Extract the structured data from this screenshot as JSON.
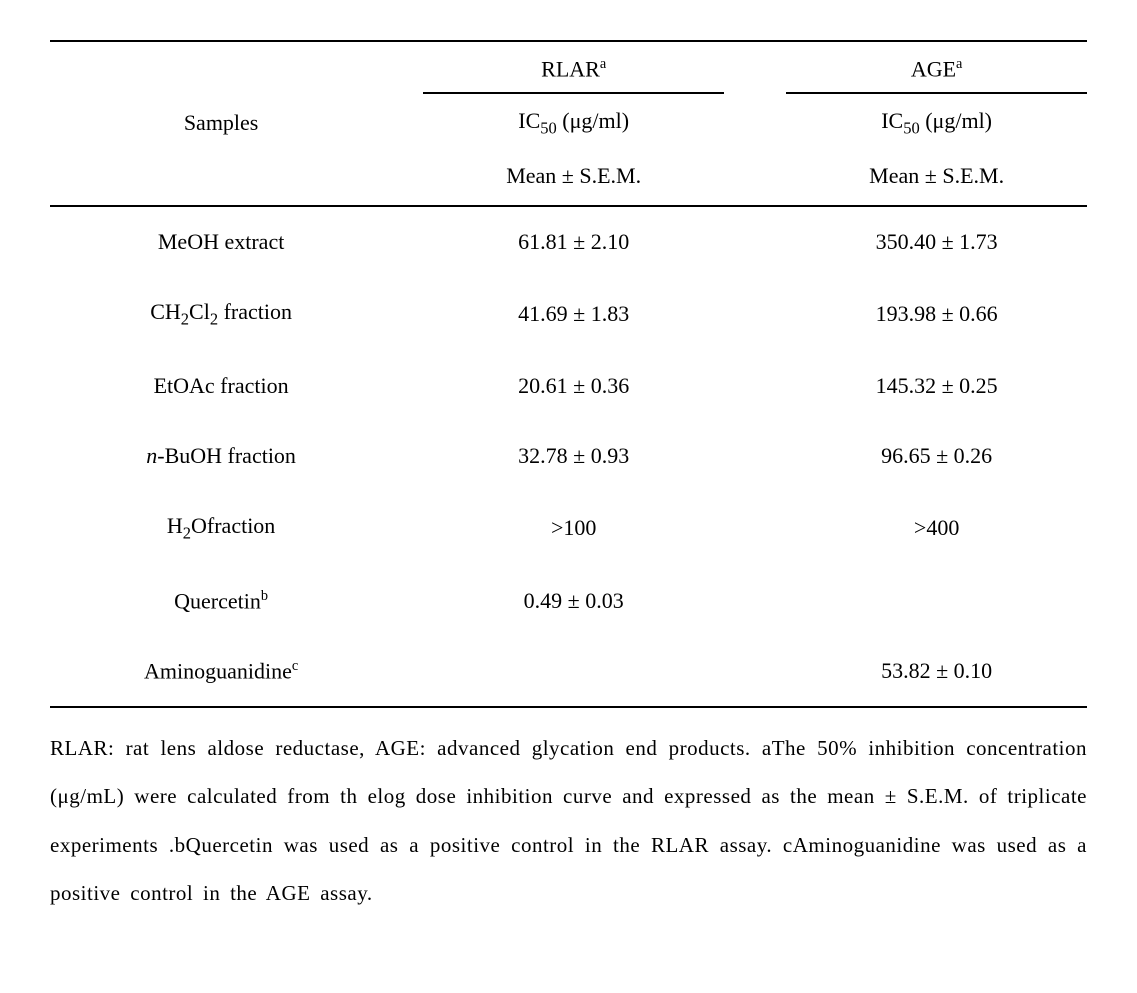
{
  "headers": {
    "samples": "Samples",
    "rlar_label": "RLAR",
    "rlar_sup": "a",
    "age_label": "AGE",
    "age_sup": "a",
    "ic50_prefix": "IC",
    "ic50_sub": "50",
    "ic50_unit": " (μg/ml)",
    "mean_sem": "Mean ± S.E.M."
  },
  "rows": [
    {
      "sample_html": "MeOH extract",
      "rlar": "61.81 ± 2.10",
      "age": "350.40 ± 1.73"
    },
    {
      "sample_html": "CH<sub>2</sub>Cl<sub>2</sub> fraction",
      "rlar": "41.69 ± 1.83",
      "age": "193.98 ± 0.66"
    },
    {
      "sample_html": "EtOAc fraction",
      "rlar": "20.61 ± 0.36",
      "age": "145.32 ± 0.25"
    },
    {
      "sample_html": "<span class=\"italic\">n</span>-BuOH fraction",
      "rlar": "32.78 ± 0.93",
      "age": "96.65 ± 0.26"
    },
    {
      "sample_html": "H<sub>2</sub>Ofraction",
      "rlar": ">100",
      "age": ">400"
    },
    {
      "sample_html": "Quercetin<sup>b</sup>",
      "rlar": "0.49 ± 0.03",
      "age": ""
    },
    {
      "sample_html": "Aminoguanidine<sup>c</sup>",
      "rlar": "",
      "age": "53.82 ± 0.10"
    }
  ],
  "footnote": "RLAR: rat lens aldose reductase, AGE: advanced glycation end products. aThe 50% inhibition concentration (μg/mL) were calculated from th elog dose inhibition curve and expressed as the mean ± S.E.M. of triplicate experiments .bQuercetin was used as a positive control in the RLAR assay. cAminoguanidine was used as a positive control in the AGE assay."
}
